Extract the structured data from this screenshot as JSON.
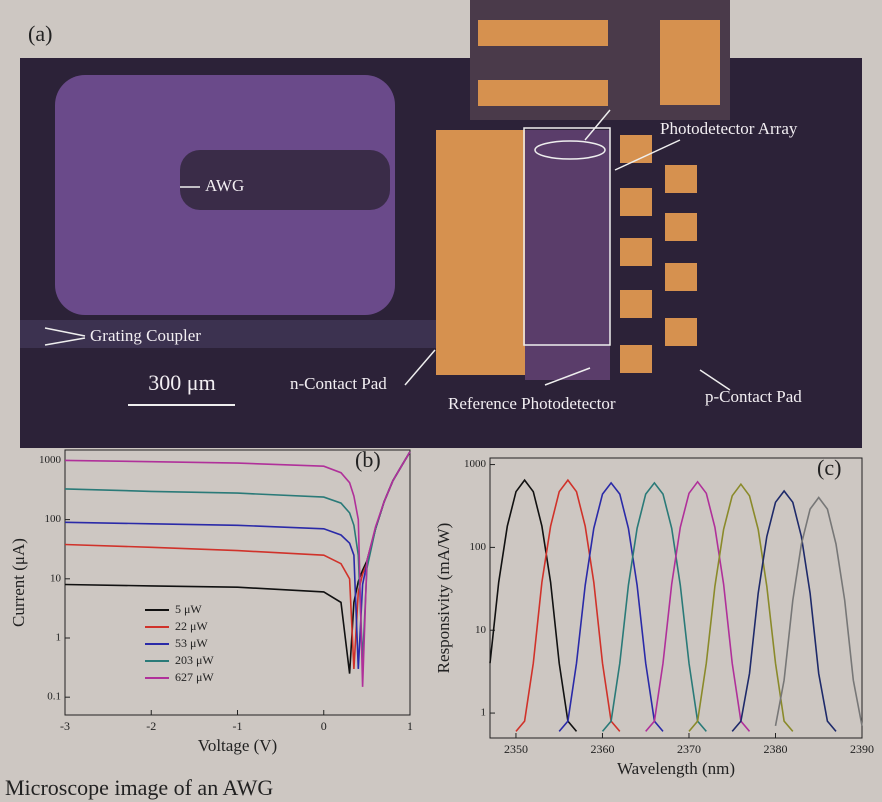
{
  "figure_a": {
    "panel_label": "(a)",
    "awg": "AWG",
    "grating_coupler": "Grating Coupler",
    "scale_bar": "300 μm",
    "n_contact": "n-Contact Pad",
    "reference_pd": "Reference Photodetector",
    "p_contact": "p-Contact Pad",
    "pd_array": "Photodetector Array"
  },
  "caption": "Microscope image of an AWG",
  "chart_data": [
    {
      "type": "line",
      "panel_label": "(b)",
      "x_label": "Voltage (V)",
      "y_label": "Current (μA)",
      "ylog": true,
      "legend": "lower left",
      "x": [
        -3,
        -2,
        -1,
        0,
        0.2,
        0.3,
        0.35,
        0.4,
        0.45,
        0.5,
        0.6,
        0.7,
        0.8,
        0.9,
        1
      ],
      "series": [
        {
          "name": "5 μW",
          "color": "#111111",
          "values": [
            8,
            7.6,
            7.2,
            6,
            4,
            0.25,
            4,
            9,
            14,
            20,
            70,
            200,
            450,
            800,
            1400
          ]
        },
        {
          "name": "22 μW",
          "color": "#d0322a",
          "values": [
            38,
            34,
            30,
            25,
            18,
            10,
            0.3,
            6,
            12,
            18,
            70,
            200,
            450,
            800,
            1400
          ]
        },
        {
          "name": "53 μW",
          "color": "#2a2aa8",
          "values": [
            90,
            85,
            80,
            70,
            55,
            40,
            25,
            0.3,
            8,
            18,
            70,
            200,
            450,
            800,
            1400
          ]
        },
        {
          "name": "203 μW",
          "color": "#2a7a78",
          "values": [
            330,
            300,
            280,
            240,
            190,
            130,
            80,
            25,
            0.4,
            15,
            70,
            200,
            450,
            800,
            1400
          ]
        },
        {
          "name": "627 μW",
          "color": "#b0309a",
          "values": [
            1000,
            950,
            900,
            800,
            620,
            420,
            250,
            100,
            0.15,
            20,
            75,
            200,
            450,
            800,
            1400
          ]
        }
      ],
      "xlim": [
        -3,
        1
      ],
      "xticks": [
        -3,
        -2,
        -1,
        0,
        1
      ],
      "ylim": [
        0.05,
        1500
      ],
      "yticks": [
        0.1,
        1,
        10,
        100,
        1000
      ]
    },
    {
      "type": "line",
      "panel_label": "(c)",
      "x_label": "Wavelength (nm)",
      "y_label": "Responsivity (mA/W)",
      "ylog": true,
      "series": [
        {
          "color": "#111111",
          "x": [
            2347,
            2348,
            2349,
            2350,
            2351,
            2352,
            2353,
            2354,
            2355,
            2356,
            2357
          ],
          "values": [
            4,
            38,
            180,
            470,
            650,
            470,
            180,
            38,
            4,
            0.8,
            0.6
          ]
        },
        {
          "color": "#d0322a",
          "x": [
            2350,
            2351,
            2352,
            2353,
            2354,
            2355,
            2356,
            2357,
            2358,
            2359,
            2360,
            2361,
            2362
          ],
          "values": [
            0.6,
            0.8,
            4,
            38,
            180,
            470,
            650,
            470,
            180,
            38,
            4,
            0.8,
            0.6
          ]
        },
        {
          "color": "#2a2aa8",
          "x": [
            2355,
            2356,
            2357,
            2358,
            2359,
            2360,
            2361,
            2362,
            2363,
            2364,
            2365,
            2366,
            2367
          ],
          "values": [
            0.6,
            0.8,
            4,
            35,
            170,
            440,
            600,
            440,
            170,
            35,
            4,
            0.8,
            0.6
          ]
        },
        {
          "color": "#2a7a78",
          "x": [
            2360,
            2361,
            2362,
            2363,
            2364,
            2365,
            2366,
            2367,
            2368,
            2369,
            2370,
            2371,
            2372
          ],
          "values": [
            0.6,
            0.8,
            4,
            35,
            170,
            440,
            600,
            440,
            170,
            35,
            4,
            0.8,
            0.6
          ]
        },
        {
          "color": "#b0309a",
          "x": [
            2365,
            2366,
            2367,
            2368,
            2369,
            2370,
            2371,
            2372,
            2373,
            2374,
            2375,
            2376,
            2377
          ],
          "values": [
            0.6,
            0.8,
            4,
            36,
            175,
            450,
            620,
            450,
            175,
            36,
            4,
            0.8,
            0.6
          ]
        },
        {
          "color": "#8a8a2a",
          "x": [
            2370,
            2371,
            2372,
            2373,
            2374,
            2375,
            2376,
            2377,
            2378,
            2379,
            2380,
            2381,
            2382
          ],
          "values": [
            0.6,
            0.8,
            4,
            34,
            165,
            420,
            580,
            420,
            165,
            34,
            4,
            0.8,
            0.6
          ]
        },
        {
          "color": "#1e2a6a",
          "x": [
            2375,
            2376,
            2377,
            2378,
            2379,
            2380,
            2381,
            2382,
            2383,
            2384,
            2385,
            2386,
            2387
          ],
          "values": [
            0.6,
            0.8,
            3,
            28,
            135,
            350,
            480,
            350,
            135,
            28,
            3,
            0.8,
            0.6
          ]
        },
        {
          "color": "#777777",
          "x": [
            2380,
            2381,
            2382,
            2383,
            2384,
            2385,
            2386,
            2387,
            2388,
            2389,
            2390
          ],
          "values": [
            0.7,
            2.5,
            23,
            110,
            290,
            400,
            290,
            110,
            23,
            2.5,
            0.7
          ]
        }
      ],
      "xlim": [
        2347,
        2390
      ],
      "xticks": [
        2350,
        2360,
        2370,
        2380,
        2390
      ],
      "ylim": [
        0.5,
        1200
      ],
      "yticks": [
        1,
        10,
        100,
        1000
      ]
    }
  ]
}
